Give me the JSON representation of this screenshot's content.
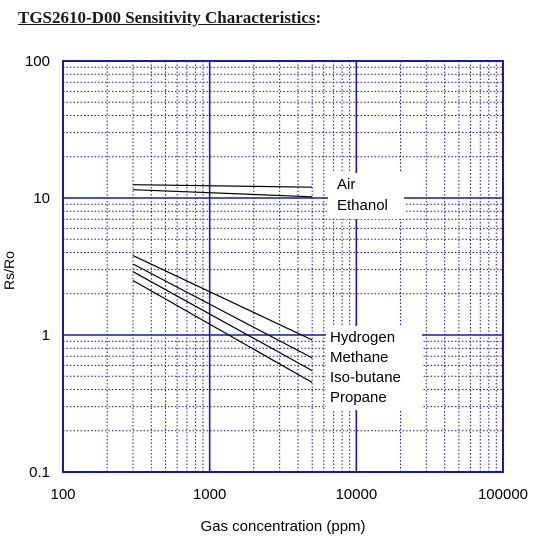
{
  "title": "TGS2610-D00 Sensitivity Characteristics",
  "title_colon": ":",
  "chart_data": {
    "type": "line",
    "xscale": "log",
    "yscale": "log",
    "xlim": [
      100,
      100000
    ],
    "ylim": [
      0.1,
      100
    ],
    "xlabel": "Gas concentration (ppm)",
    "ylabel": "Rs/Ro",
    "x_ticks": [
      "100",
      "1000",
      "10000",
      "100000"
    ],
    "y_ticks": [
      "100",
      "10",
      "1",
      "0.1"
    ],
    "grid": true,
    "series": [
      {
        "name": "Air",
        "x": [
          300,
          5000
        ],
        "y": [
          12.5,
          12.0
        ]
      },
      {
        "name": "Ethanol",
        "x": [
          300,
          5000
        ],
        "y": [
          11.5,
          10.2
        ]
      },
      {
        "name": "Hydrogen",
        "x": [
          300,
          5000
        ],
        "y": [
          3.8,
          0.92
        ]
      },
      {
        "name": "Methane",
        "x": [
          300,
          5000
        ],
        "y": [
          3.3,
          0.68
        ]
      },
      {
        "name": "Iso-butane",
        "x": [
          300,
          5000
        ],
        "y": [
          2.9,
          0.55
        ]
      },
      {
        "name": "Propane",
        "x": [
          300,
          5000
        ],
        "y": [
          2.5,
          0.45
        ]
      }
    ],
    "colors": {
      "grid": "#1a1aa8",
      "lines": "#000000"
    }
  }
}
